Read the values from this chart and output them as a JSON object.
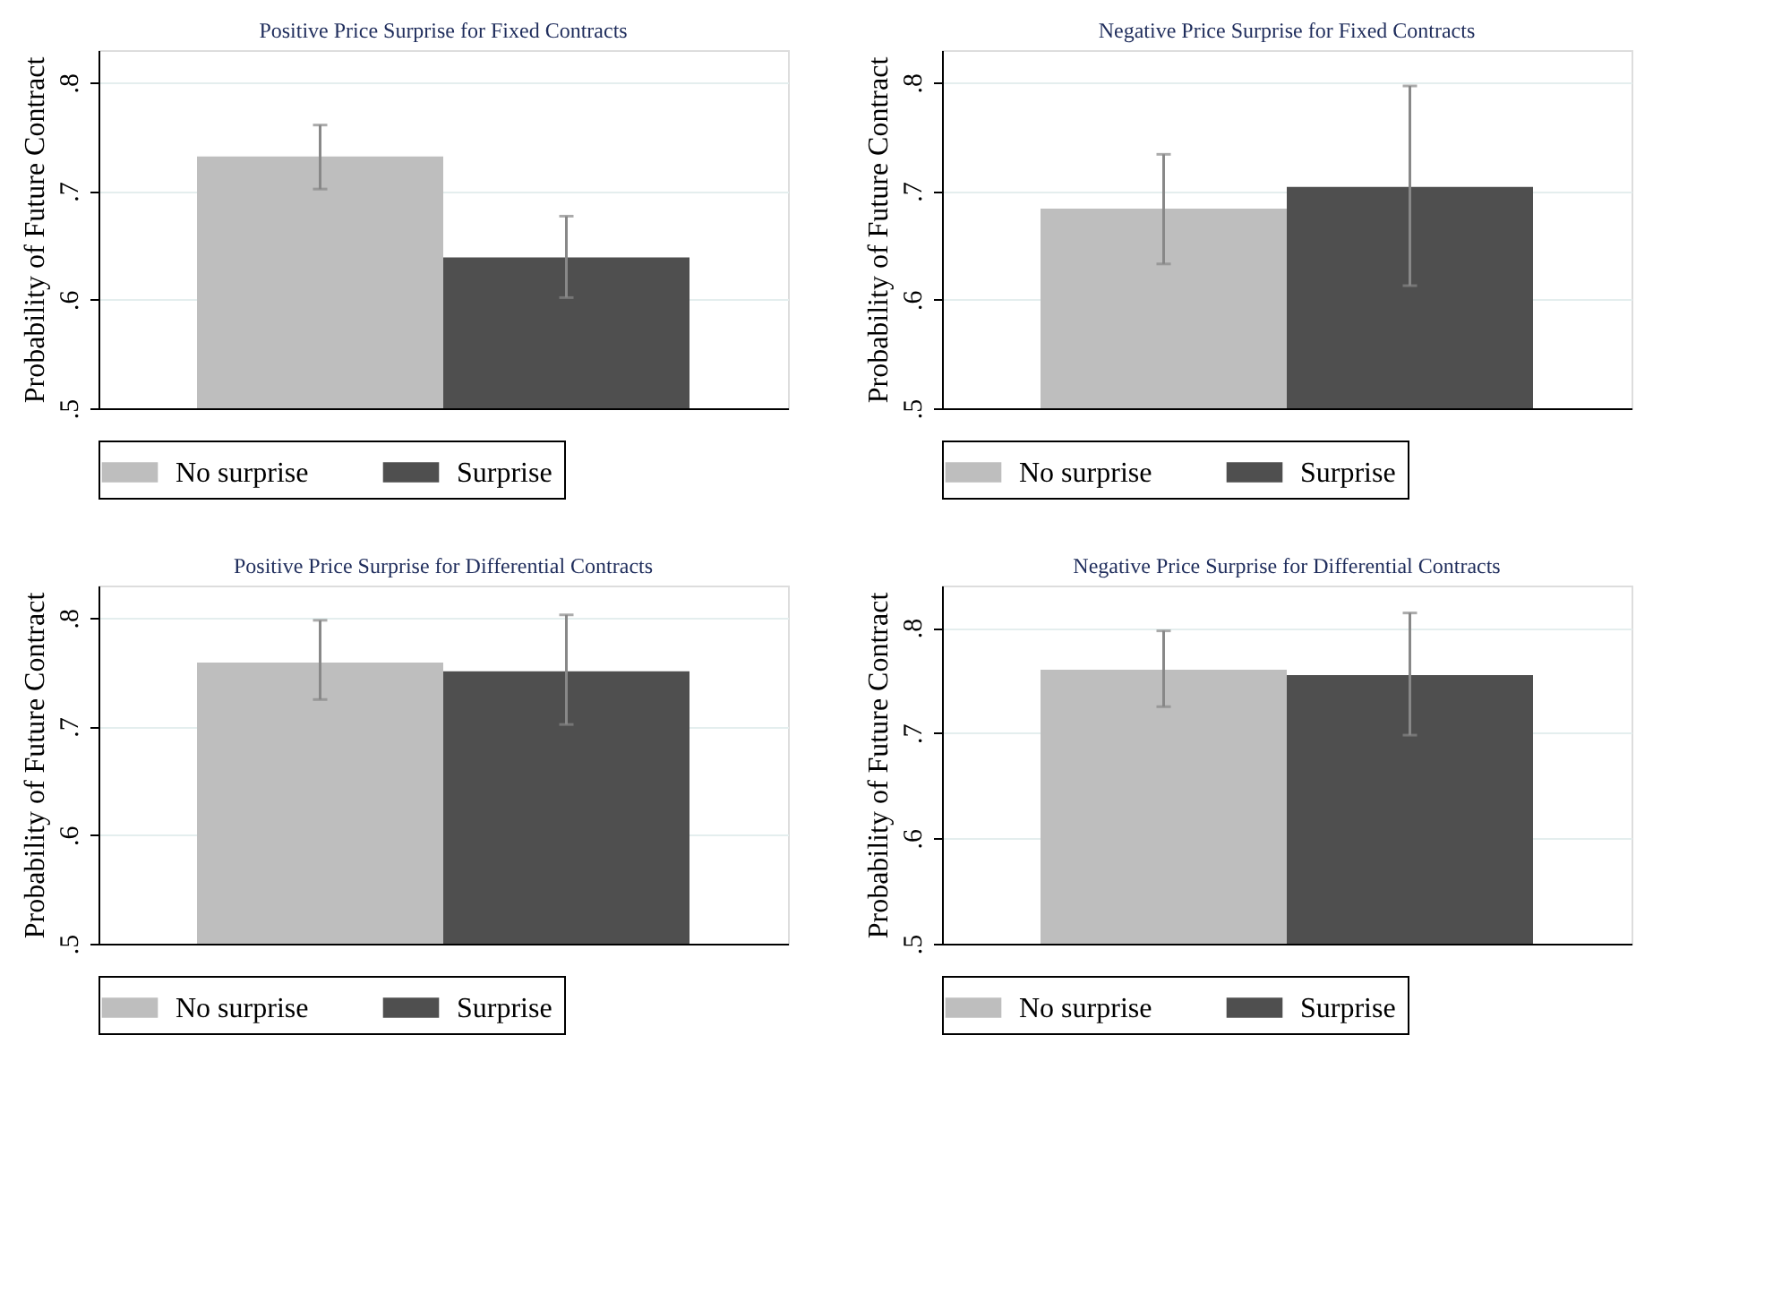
{
  "chart_data": [
    {
      "type": "bar",
      "title": "Positive Price Surprise for Fixed Contracts",
      "ylabel": "Probability of Future Contract",
      "categories": [
        null
      ],
      "series": [
        {
          "name": "No surprise",
          "color": "#bebebe",
          "values": [
            0.732
          ],
          "errors": [
            [
              0.702,
              0.761
            ]
          ]
        },
        {
          "name": "Surprise",
          "color": "#4f4f4f",
          "values": [
            0.639
          ],
          "errors": [
            [
              0.602,
              0.677
            ]
          ]
        }
      ],
      "ylim": [
        0.5,
        0.83
      ],
      "yticks": [
        {
          "value": 0.5,
          "label": ".5"
        },
        {
          "value": 0.6,
          "label": ".6"
        },
        {
          "value": 0.7,
          "label": ".7"
        },
        {
          "value": 0.8,
          "label": ".8"
        }
      ],
      "grid": "y",
      "legend": "bottom",
      "tick_labels": "y"
    },
    {
      "type": "bar",
      "title": "Negative Price Surprise for Fixed Contracts",
      "ylabel": "Probability of Future Contract",
      "categories": [
        null
      ],
      "series": [
        {
          "name": "No surprise",
          "color": "#bebebe",
          "values": [
            0.684
          ],
          "errors": [
            [
              0.633,
              0.734
            ]
          ]
        },
        {
          "name": "Surprise",
          "color": "#4f4f4f",
          "values": [
            0.704
          ],
          "errors": [
            [
              0.613,
              0.797
            ]
          ]
        }
      ],
      "ylim": [
        0.5,
        0.83
      ],
      "yticks": [
        {
          "value": 0.5,
          "label": ".5"
        },
        {
          "value": 0.6,
          "label": ".6"
        },
        {
          "value": 0.7,
          "label": ".7"
        },
        {
          "value": 0.8,
          "label": ".8"
        }
      ],
      "grid": "y",
      "legend": "bottom",
      "tick_labels": "y"
    },
    {
      "type": "bar",
      "title": "Positive Price Surprise for Differential Contracts",
      "ylabel": "Probability of Future Contract",
      "categories": [
        null
      ],
      "series": [
        {
          "name": "No surprise",
          "color": "#bebebe",
          "values": [
            0.759
          ],
          "errors": [
            [
              0.725,
              0.798
            ]
          ]
        },
        {
          "name": "Surprise",
          "color": "#4f4f4f",
          "values": [
            0.751
          ],
          "errors": [
            [
              0.702,
              0.803
            ]
          ]
        }
      ],
      "ylim": [
        0.5,
        0.83
      ],
      "yticks": [
        {
          "value": 0.5,
          "label": ".5"
        },
        {
          "value": 0.6,
          "label": ".6"
        },
        {
          "value": 0.7,
          "label": ".7"
        },
        {
          "value": 0.8,
          "label": ".8"
        }
      ],
      "grid": "y",
      "legend": "bottom",
      "tick_labels": "y"
    },
    {
      "type": "bar",
      "title": "Negative Price Surprise for Differential Contracts",
      "ylabel": "Probability of Future Contract",
      "categories": [
        null
      ],
      "series": [
        {
          "name": "No surprise",
          "color": "#bebebe",
          "values": [
            0.76
          ],
          "errors": [
            [
              0.725,
              0.797
            ]
          ]
        },
        {
          "name": "Surprise",
          "color": "#4f4f4f",
          "values": [
            0.755
          ],
          "errors": [
            [
              0.698,
              0.814
            ]
          ]
        }
      ],
      "ylim": [
        0.5,
        0.84
      ],
      "yticks": [
        {
          "value": 0.5,
          "label": ".5"
        },
        {
          "value": 0.6,
          "label": ".6"
        },
        {
          "value": 0.7,
          "label": ".7"
        },
        {
          "value": 0.8,
          "label": ".8"
        }
      ],
      "grid": "y",
      "legend": "bottom",
      "tick_labels": "y"
    }
  ]
}
